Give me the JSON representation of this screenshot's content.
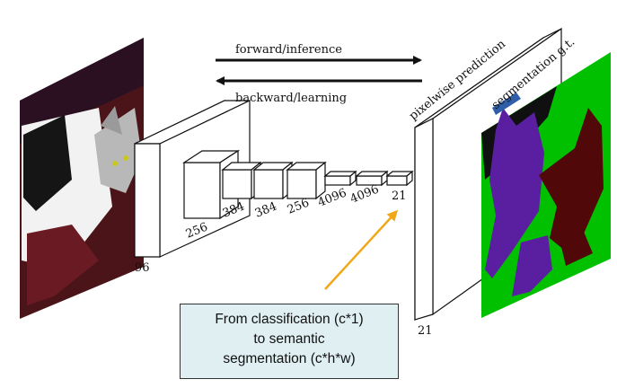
{
  "arrows": {
    "forward": "forward/inference",
    "backward": "backward/learning"
  },
  "layers": [
    {
      "label": "96"
    },
    {
      "label": "256"
    },
    {
      "label": "384"
    },
    {
      "label": "384"
    },
    {
      "label": "256"
    },
    {
      "label": "4096"
    },
    {
      "label": "4096"
    },
    {
      "label": "21"
    }
  ],
  "output": {
    "prediction_label": "pixelwise prediction",
    "depth_label": "21",
    "gt_label": "segmentation g.t."
  },
  "callout": {
    "line1": "From classification (c*1)",
    "line2": "to semantic",
    "line3": "segmentation (c*h*w)"
  },
  "colors": {
    "arrow_orange": "#f0a818",
    "gt_background": "#00c000",
    "class_dog": "#5a1fa0",
    "class_dog2": "#500808",
    "void": "#101010",
    "tag_blue": "#2e5fa8"
  }
}
